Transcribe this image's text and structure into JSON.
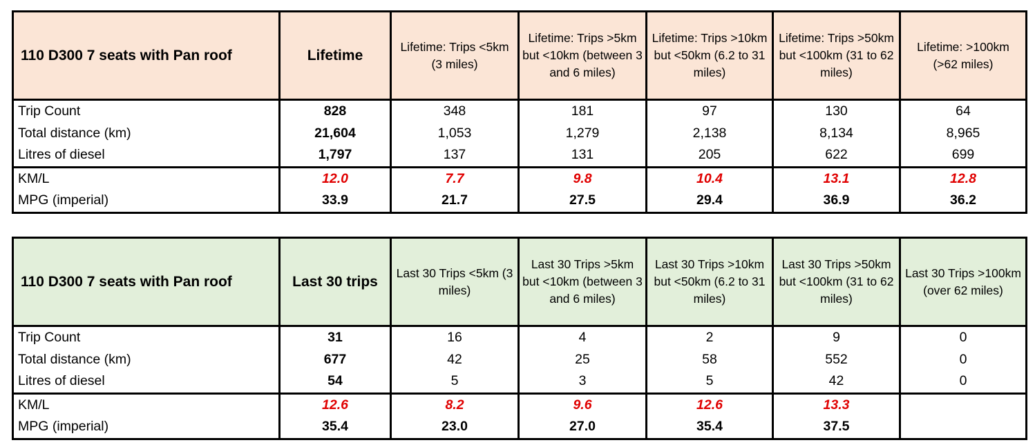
{
  "colors": {
    "lifetime_header_bg": "#fbe5d6",
    "last30_header_bg": "#e2efda",
    "kml_value": "#e00000"
  },
  "tables": [
    {
      "headers": [
        "110 D300 7 seats with Pan roof",
        "Lifetime",
        "Lifetime: Trips <5km (3 miles)",
        "Lifetime: Trips >5km but <10km (between 3 and 6 miles)",
        "Lifetime: Trips >10km but <50km (6.2 to 31 miles)",
        "Lifetime: Trips >50km but <100km (31 to 62 miles)",
        "Lifetime: >100km (>62 miles)"
      ],
      "rows": [
        [
          "Trip Count",
          "828",
          "348",
          "181",
          "97",
          "130",
          "64"
        ],
        [
          "Total distance (km)",
          "21,604",
          "1,053",
          "1,279",
          "2,138",
          "8,134",
          "8,965"
        ],
        [
          "Litres of diesel",
          "1,797",
          "137",
          "131",
          "205",
          "622",
          "699"
        ],
        [
          "KM/L",
          "12.0",
          "7.7",
          "9.8",
          "10.4",
          "13.1",
          "12.8"
        ],
        [
          "MPG (imperial)",
          "33.9",
          "21.7",
          "27.5",
          "29.4",
          "36.9",
          "36.2"
        ]
      ]
    },
    {
      "headers": [
        "110 D300 7 seats with Pan roof",
        "Last 30 trips",
        "Last 30 Trips <5km (3 miles)",
        "Last 30 Trips >5km but <10km (between 3 and 6 miles)",
        "Last 30 Trips >10km but <50km (6.2 to 31 miles)",
        "Last 30 Trips >50km but <100km (31 to 62 miles)",
        "Last 30 Trips >100km (over 62 miles)"
      ],
      "rows": [
        [
          "Trip Count",
          "31",
          "16",
          "4",
          "2",
          "9",
          "0"
        ],
        [
          "Total distance (km)",
          "677",
          "42",
          "25",
          "58",
          "552",
          "0"
        ],
        [
          "Litres of diesel",
          "54",
          "5",
          "3",
          "5",
          "42",
          "0"
        ],
        [
          "KM/L",
          "12.6",
          "8.2",
          "9.6",
          "12.6",
          "13.3",
          ""
        ],
        [
          "MPG (imperial)",
          "35.4",
          "23.0",
          "27.0",
          "35.4",
          "37.5",
          ""
        ]
      ]
    }
  ]
}
